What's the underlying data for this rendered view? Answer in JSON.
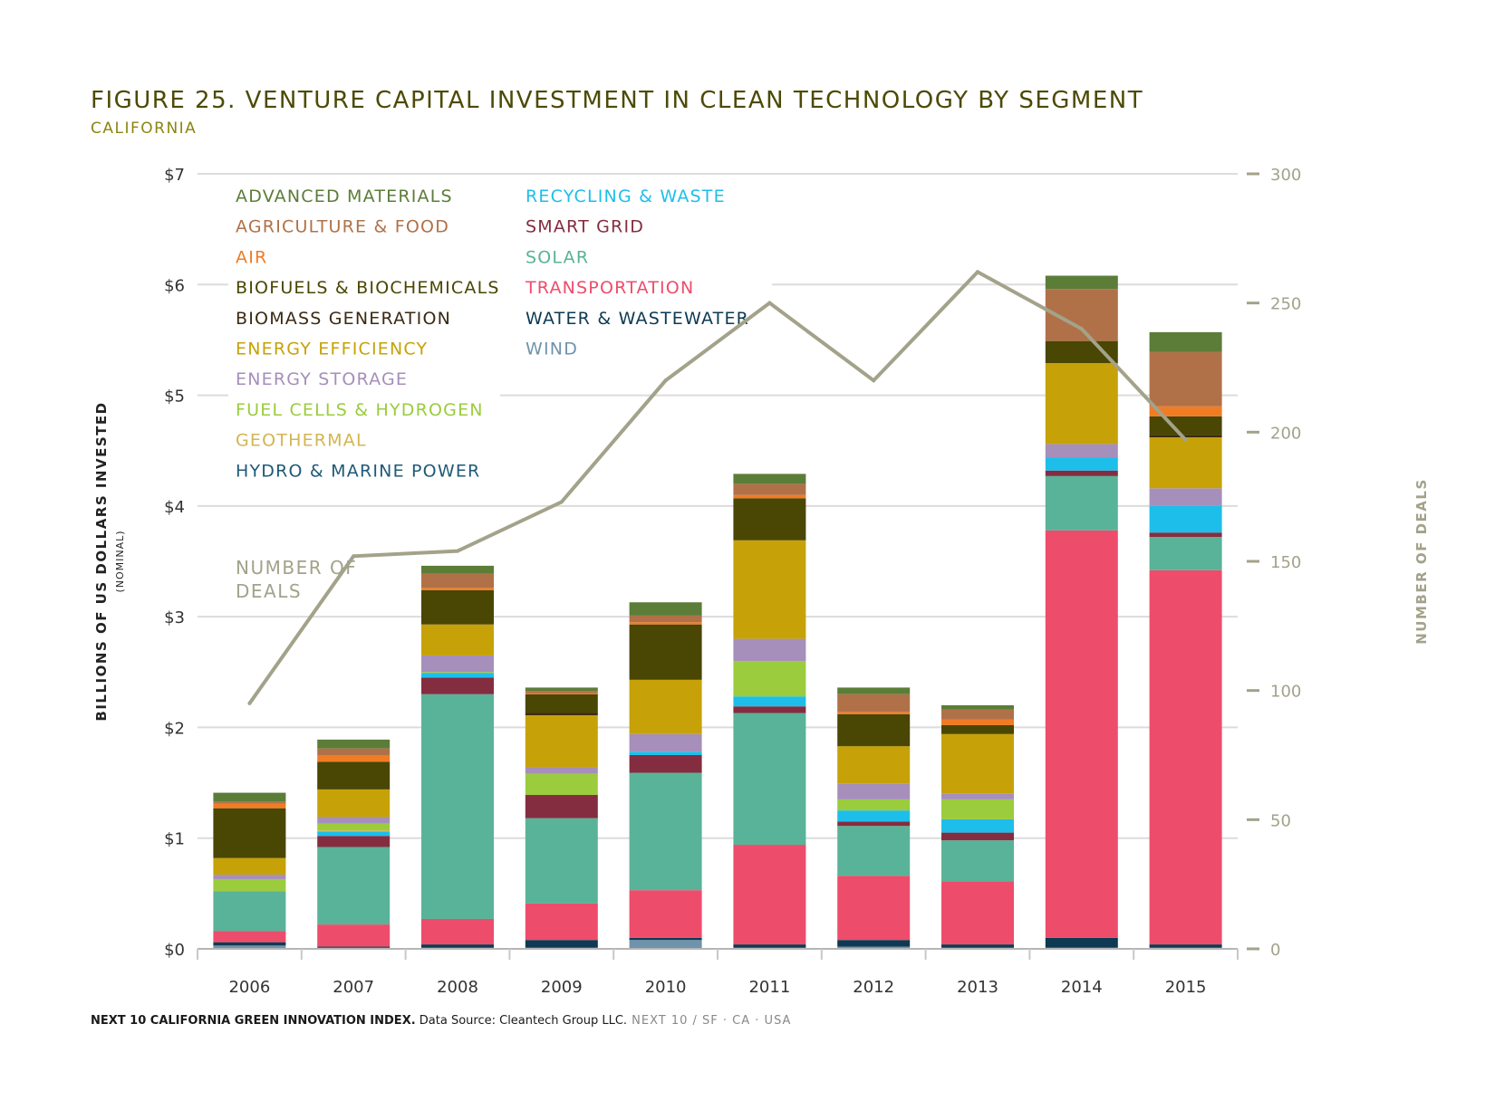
{
  "figure": {
    "title": "FIGURE 25. VENTURE CAPITAL INVESTMENT IN CLEAN TECHNOLOGY BY SEGMENT",
    "subtitle": "CALIFORNIA"
  },
  "footer": {
    "bold": "NEXT 10 CALIFORNIA GREEN INNOVATION INDEX.",
    "normal": " Data Source: Cleantech Group LLC.",
    "light": " NEXT 10  /  SF · CA · USA"
  },
  "chart_data": {
    "type": "bar",
    "stacked": true,
    "categories": [
      "2006",
      "2007",
      "2008",
      "2009",
      "2010",
      "2011",
      "2012",
      "2013",
      "2014",
      "2015"
    ],
    "ylabel": "BILLIONS OF US DOLLARS INVESTED",
    "ylabel_sub": "(NOMINAL)",
    "y2label": "NUMBER OF DEALS",
    "ylim": [
      0,
      7
    ],
    "y2lim": [
      0,
      300
    ],
    "yticks": [
      0,
      1,
      2,
      3,
      4,
      5,
      6,
      7
    ],
    "ytick_labels": [
      "$0",
      "$1",
      "$2",
      "$3",
      "$4",
      "$5",
      "$6",
      "$7"
    ],
    "y2ticks": [
      0,
      50,
      100,
      150,
      200,
      250,
      300
    ],
    "y2tick_labels": [
      "0",
      "50",
      "100",
      "150",
      "200",
      "250",
      "300"
    ],
    "grid": true,
    "legend_position": "top-left",
    "line_label": [
      "NUMBER OF",
      "DEALS"
    ],
    "line_series": {
      "name": "NUMBER OF DEALS",
      "color": "#a3a28a",
      "values": [
        95,
        152,
        154,
        173,
        220,
        250,
        220,
        262,
        240,
        197
      ]
    },
    "series": [
      {
        "name": "WIND",
        "color": "#6f93ac",
        "values": [
          0.03,
          0.01,
          0.01,
          0.01,
          0.08,
          0.01,
          0.02,
          0.01,
          0.01,
          0.01
        ]
      },
      {
        "name": "HYDRO & MARINE POWER",
        "color": "#1f5a78",
        "values": [
          0,
          0,
          0,
          0,
          0,
          0,
          0,
          0,
          0,
          0
        ]
      },
      {
        "name": "WATER & WASTEWATER",
        "color": "#0d3a52",
        "values": [
          0.03,
          0.01,
          0.03,
          0.07,
          0.02,
          0.03,
          0.06,
          0.03,
          0.09,
          0.03
        ]
      },
      {
        "name": "TRANSPORTATION",
        "color": "#ee4c6b",
        "values": [
          0.1,
          0.2,
          0.23,
          0.33,
          0.43,
          0.9,
          0.58,
          0.57,
          3.68,
          3.38
        ]
      },
      {
        "name": "SOLAR",
        "color": "#59b398",
        "values": [
          0.36,
          0.7,
          2.03,
          0.77,
          1.06,
          1.19,
          0.45,
          0.37,
          0.49,
          0.3
        ]
      },
      {
        "name": "SMART GRID",
        "color": "#852d40",
        "values": [
          0,
          0.1,
          0.15,
          0.21,
          0.16,
          0.06,
          0.04,
          0.07,
          0.05,
          0.04
        ]
      },
      {
        "name": "RECYCLING & WASTE",
        "color": "#1dbfea",
        "values": [
          0,
          0.04,
          0.04,
          0,
          0.03,
          0.09,
          0.1,
          0.12,
          0.12,
          0.24
        ]
      },
      {
        "name": "GEOTHERMAL",
        "color": "#d3b553",
        "values": [
          0,
          0.01,
          0,
          0,
          0,
          0,
          0,
          0,
          0,
          0
        ]
      },
      {
        "name": "FUEL CELLS & HYDROGEN",
        "color": "#9bcc3d",
        "values": [
          0.11,
          0.06,
          0.01,
          0.19,
          0,
          0.32,
          0.1,
          0.18,
          0,
          0
        ]
      },
      {
        "name": "ENERGY STORAGE",
        "color": "#a68fbb",
        "values": [
          0.04,
          0.06,
          0.15,
          0.06,
          0.16,
          0.2,
          0.14,
          0.05,
          0.12,
          0.16
        ]
      },
      {
        "name": "ENERGY EFFICIENCY",
        "color": "#c6a208",
        "values": [
          0.15,
          0.25,
          0.28,
          0.47,
          0.49,
          0.89,
          0.34,
          0.54,
          0.73,
          0.46
        ]
      },
      {
        "name": "BIOMASS GENERATION",
        "color": "#3b2a12",
        "values": [
          0,
          0,
          0,
          0.02,
          0,
          0,
          0,
          0,
          0,
          0.02
        ]
      },
      {
        "name": "BIOFUELS & BIOCHEMICALS",
        "color": "#4a4603",
        "values": [
          0.45,
          0.25,
          0.31,
          0.17,
          0.5,
          0.38,
          0.29,
          0.08,
          0.2,
          0.17
        ]
      },
      {
        "name": "AIR",
        "color": "#f07c24",
        "values": [
          0.04,
          0.06,
          0.02,
          0.01,
          0.02,
          0.03,
          0.02,
          0.05,
          0,
          0.09
        ]
      },
      {
        "name": "AGRICULTURE & FOOD",
        "color": "#b07148",
        "values": [
          0.02,
          0.06,
          0.13,
          0.02,
          0.06,
          0.1,
          0.16,
          0.09,
          0.47,
          0.49
        ]
      },
      {
        "name": "ADVANCED MATERIALS",
        "color": "#5b7d38",
        "values": [
          0.08,
          0.08,
          0.07,
          0.03,
          0.12,
          0.09,
          0.06,
          0.04,
          0.12,
          0.18
        ]
      }
    ],
    "legend_order": [
      "ADVANCED MATERIALS",
      "AGRICULTURE & FOOD",
      "AIR",
      "BIOFUELS & BIOCHEMICALS",
      "BIOMASS GENERATION",
      "ENERGY EFFICIENCY",
      "ENERGY STORAGE",
      "FUEL CELLS & HYDROGEN",
      "GEOTHERMAL",
      "HYDRO & MARINE POWER",
      "RECYCLING & WASTE",
      "SMART GRID",
      "SOLAR",
      "TRANSPORTATION",
      "WATER & WASTEWATER",
      "WIND"
    ]
  }
}
